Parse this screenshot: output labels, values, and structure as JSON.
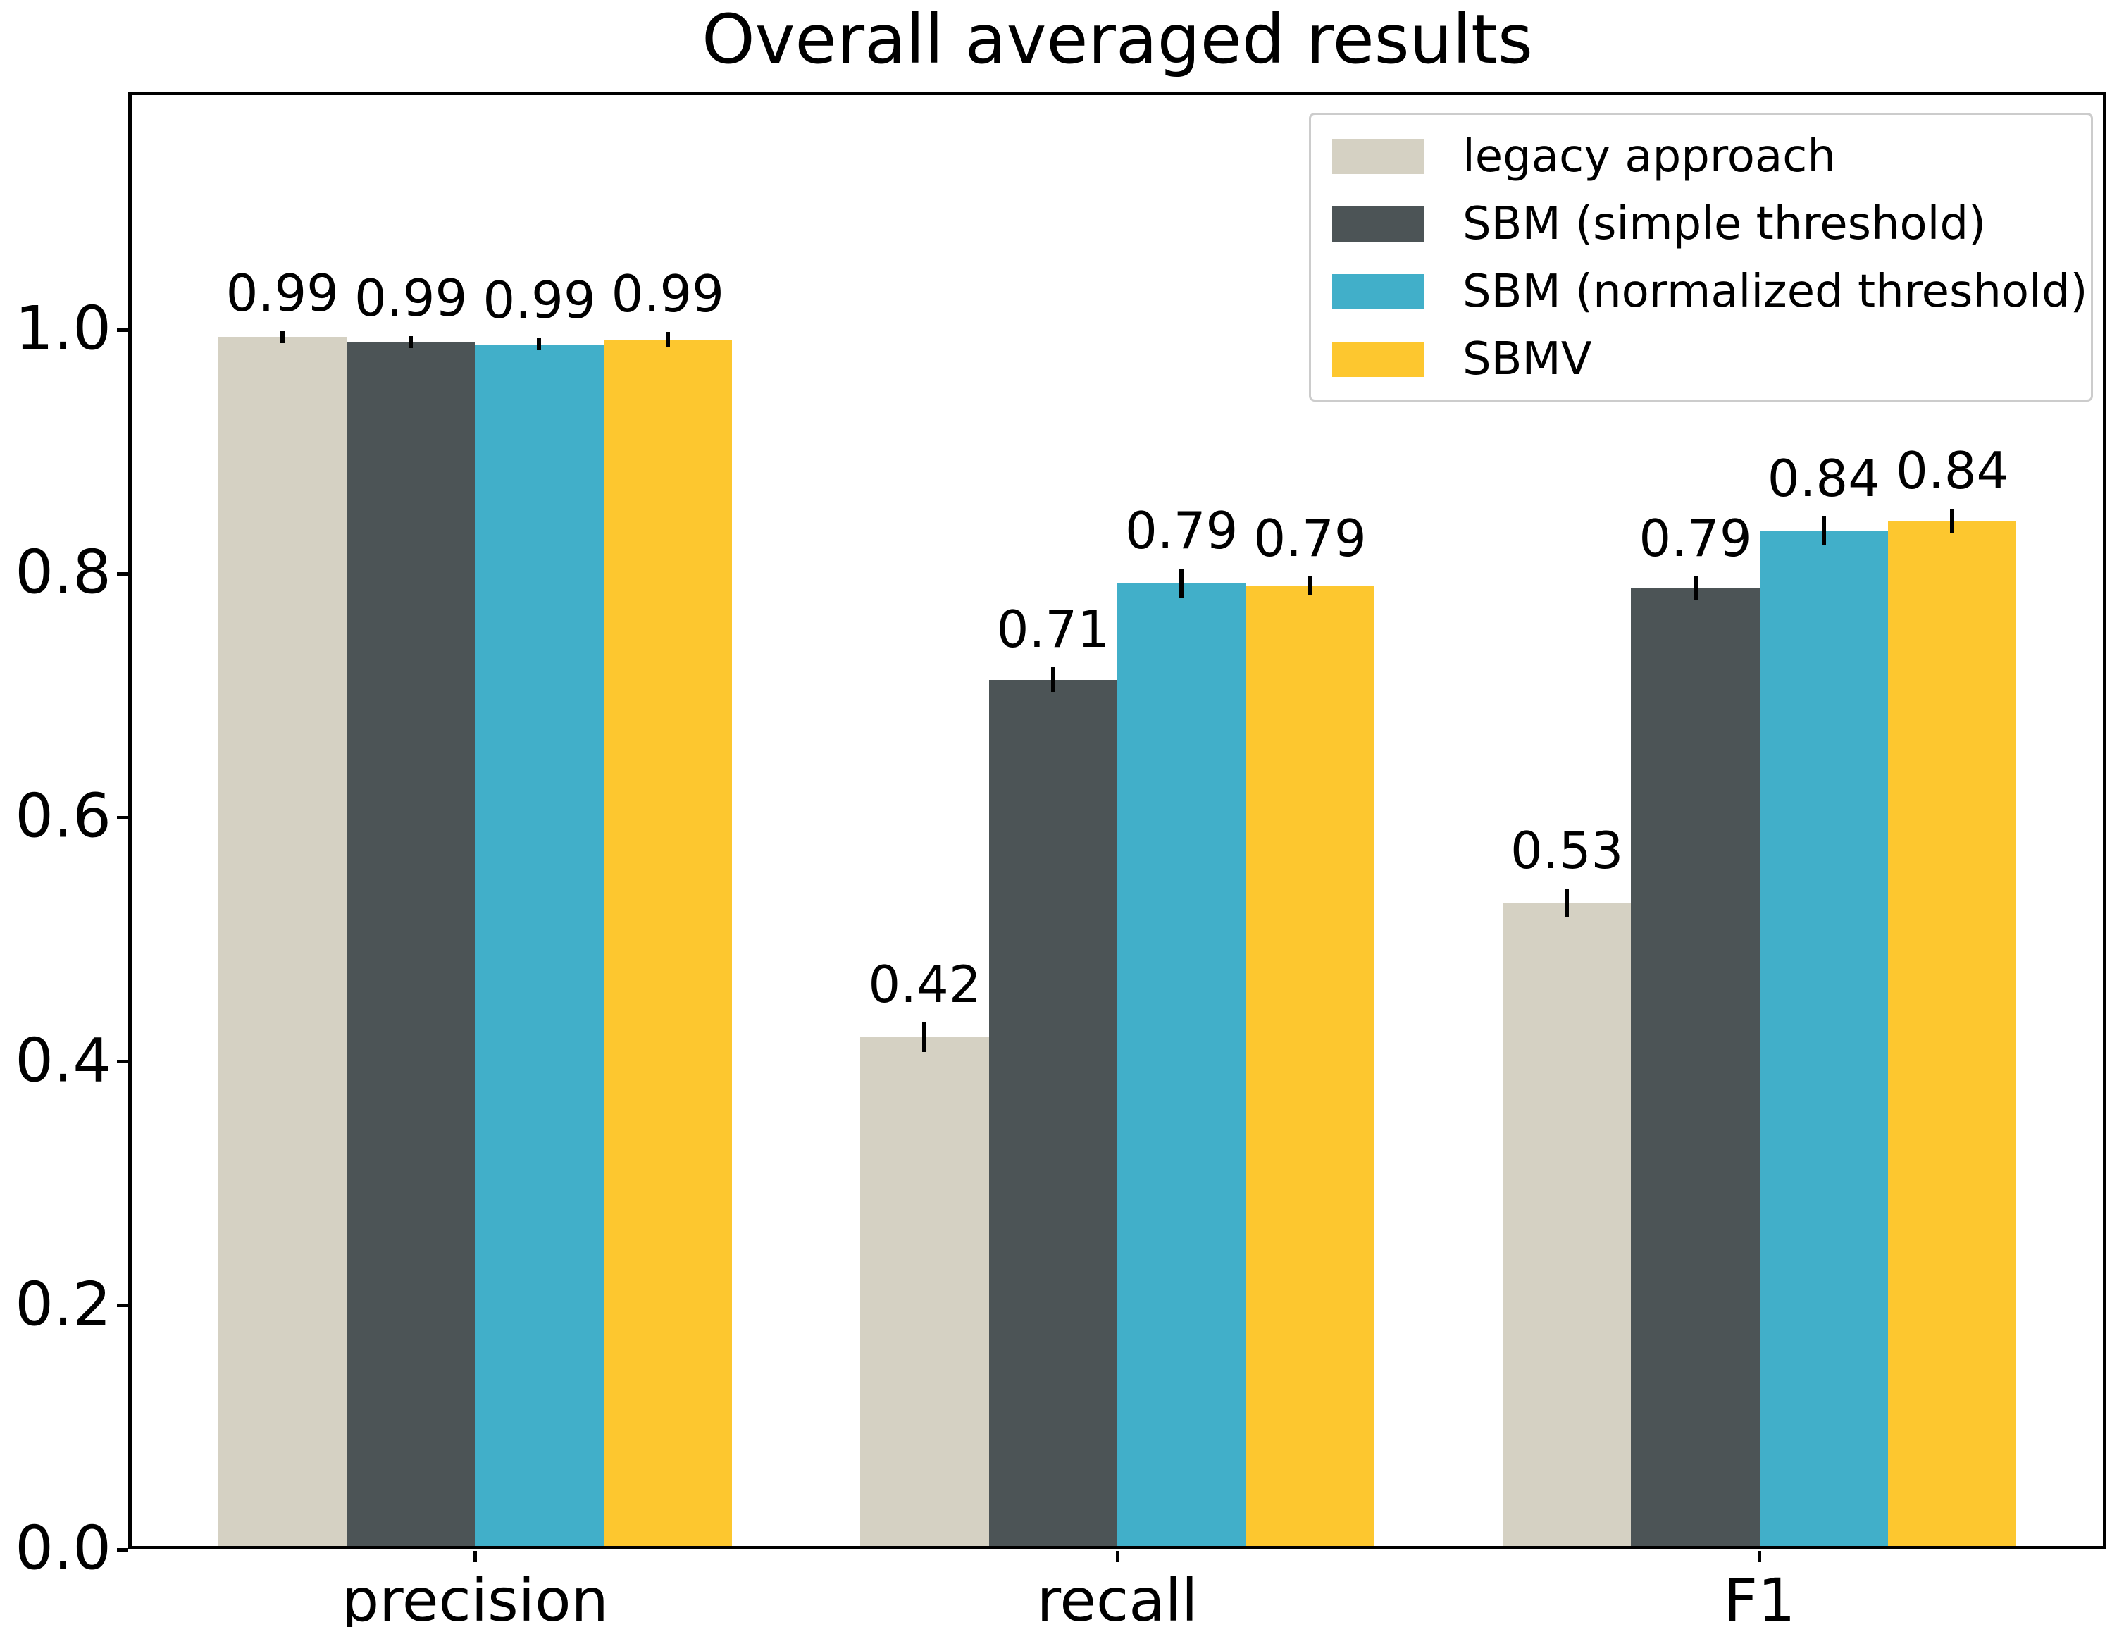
{
  "chart_data": {
    "type": "bar",
    "title": "Overall averaged results",
    "xlabel": "",
    "ylabel": "",
    "categories": [
      "precision",
      "recall",
      "F1"
    ],
    "series": [
      {
        "name": "legacy approach",
        "color": "#d5d1c3",
        "values": [
          0.994,
          0.42,
          0.53
        ],
        "errors": [
          0.005,
          0.012,
          0.012
        ],
        "labels": [
          "0.99",
          "0.42",
          "0.53"
        ]
      },
      {
        "name": "SBM (simple threshold)",
        "color": "#4c5456",
        "values": [
          0.99,
          0.713,
          0.788
        ],
        "errors": [
          0.005,
          0.01,
          0.01
        ],
        "labels": [
          "0.99",
          "0.71",
          "0.79"
        ]
      },
      {
        "name": "SBM (normalized threshold)",
        "color": "#41afc9",
        "values": [
          0.988,
          0.792,
          0.835
        ],
        "errors": [
          0.005,
          0.012,
          0.012
        ],
        "labels": [
          "0.99",
          "0.79",
          "0.84"
        ]
      },
      {
        "name": "SBMV",
        "color": "#fdc72f",
        "values": [
          0.992,
          0.79,
          0.843
        ],
        "errors": [
          0.006,
          0.008,
          0.01
        ],
        "labels": [
          "0.99",
          "0.79",
          "0.84"
        ]
      }
    ],
    "yticks": [
      "0.0",
      "0.2",
      "0.4",
      "0.6",
      "0.8",
      "1.0"
    ],
    "ytick_values": [
      0.0,
      0.2,
      0.4,
      0.6,
      0.8,
      1.0
    ],
    "ylim": [
      0.0,
      1.195
    ],
    "grid": "off",
    "legend_position": "upper right",
    "bar_group_layout": {
      "bars_per_group": 4,
      "bar_width_units": 0.2,
      "xlim": [
        -0.54,
        2.54
      ]
    }
  }
}
